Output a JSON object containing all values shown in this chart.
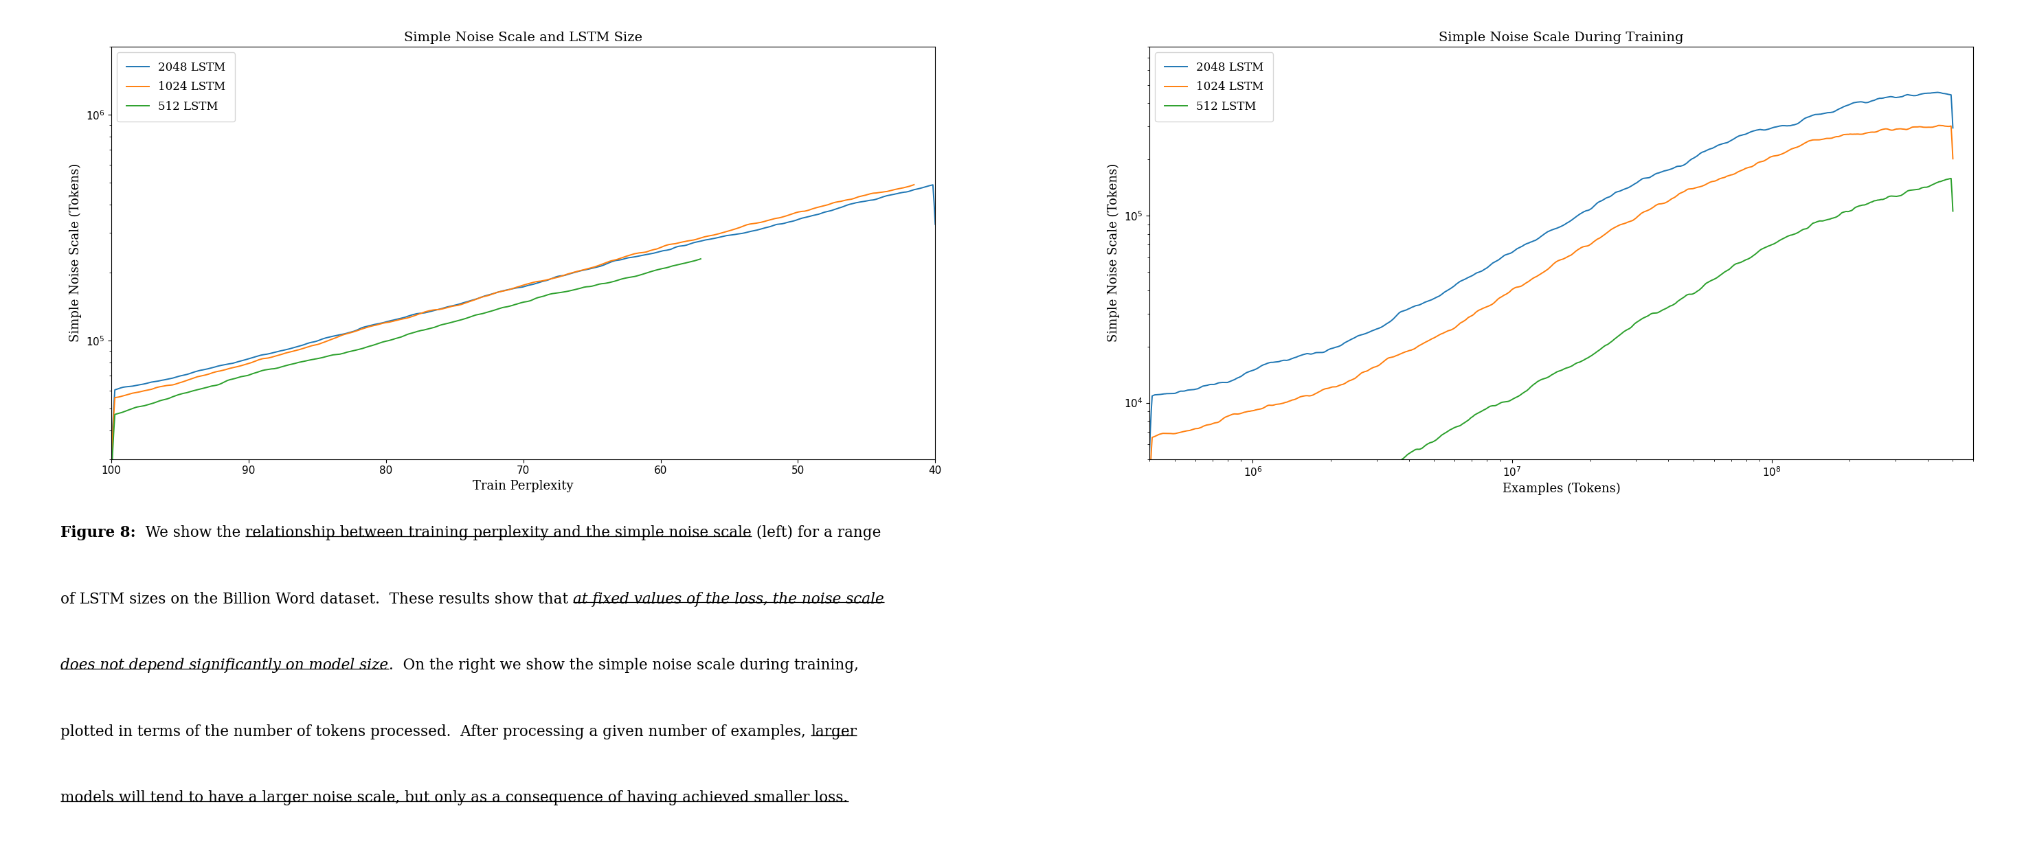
{
  "title_left": "Simple Noise Scale and LSTM Size",
  "title_right": "Simple Noise Scale During Training",
  "ylabel": "Simple Noise Scale (Tokens)",
  "xlabel_left": "Train Perplexity",
  "xlabel_right": "Examples (Tokens)",
  "legend_labels": [
    "2048 LSTM",
    "1024 LSTM",
    "512 LSTM"
  ],
  "colors": [
    "#1f77b4",
    "#ff7f0e",
    "#2ca02c"
  ],
  "background_color": "#ffffff",
  "fig_width": 29.46,
  "fig_height": 12.38
}
